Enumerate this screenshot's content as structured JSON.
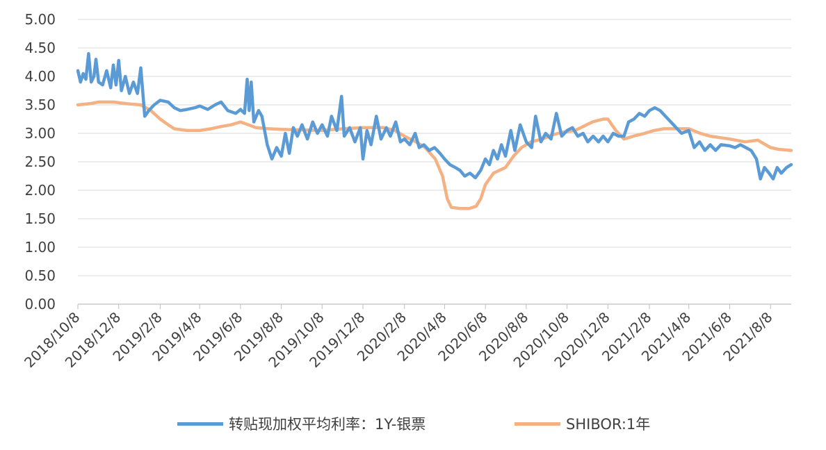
{
  "chart_data": {
    "type": "line",
    "y_axis": {
      "min": 0,
      "max": 5,
      "step": 0.5,
      "tick_labels": [
        "0.00",
        "0.50",
        "1.00",
        "1.50",
        "2.00",
        "2.50",
        "3.00",
        "3.50",
        "4.00",
        "4.50",
        "5.00"
      ]
    },
    "x_axis": {
      "start": "2018-10-08",
      "end": "2021-09-08",
      "ticks": [
        {
          "date": "2018-10-08",
          "label": "2018/10/8"
        },
        {
          "date": "2018-12-08",
          "label": "2018/12/8"
        },
        {
          "date": "2019-02-08",
          "label": "2019/2/8"
        },
        {
          "date": "2019-04-08",
          "label": "2019/4/8"
        },
        {
          "date": "2019-06-08",
          "label": "2019/6/8"
        },
        {
          "date": "2019-08-08",
          "label": "2019/8/8"
        },
        {
          "date": "2019-10-08",
          "label": "2019/10/8"
        },
        {
          "date": "2019-12-08",
          "label": "2019/12/8"
        },
        {
          "date": "2020-02-08",
          "label": "2020/2/8"
        },
        {
          "date": "2020-04-08",
          "label": "2020/4/8"
        },
        {
          "date": "2020-06-08",
          "label": "2020/6/8"
        },
        {
          "date": "2020-08-08",
          "label": "2020/8/8"
        },
        {
          "date": "2020-10-08",
          "label": "2020/10/8"
        },
        {
          "date": "2020-12-08",
          "label": "2020/12/8"
        },
        {
          "date": "2021-02-08",
          "label": "2021/2/8"
        },
        {
          "date": "2021-04-08",
          "label": "2021/4/8"
        },
        {
          "date": "2021-06-08",
          "label": "2021/6/8"
        },
        {
          "date": "2021-08-08",
          "label": "2021/8/8"
        }
      ]
    },
    "grid": true,
    "legend_position": "bottom",
    "series": [
      {
        "name": "转贴现加权平均利率：1Y-银票",
        "color": "#5B9BD5",
        "points": [
          [
            "2018-10-08",
            4.1
          ],
          [
            "2018-10-12",
            3.9
          ],
          [
            "2018-10-16",
            4.05
          ],
          [
            "2018-10-20",
            3.95
          ],
          [
            "2018-10-24",
            4.4
          ],
          [
            "2018-10-28",
            3.9
          ],
          [
            "2018-11-01",
            4.0
          ],
          [
            "2018-11-04",
            4.3
          ],
          [
            "2018-11-08",
            3.9
          ],
          [
            "2018-11-14",
            3.85
          ],
          [
            "2018-11-20",
            4.1
          ],
          [
            "2018-11-26",
            3.8
          ],
          [
            "2018-11-30",
            4.2
          ],
          [
            "2018-12-04",
            3.85
          ],
          [
            "2018-12-08",
            4.28
          ],
          [
            "2018-12-12",
            3.75
          ],
          [
            "2018-12-18",
            4.0
          ],
          [
            "2018-12-24",
            3.7
          ],
          [
            "2018-12-30",
            3.9
          ],
          [
            "2019-01-05",
            3.7
          ],
          [
            "2019-01-10",
            4.15
          ],
          [
            "2019-01-16",
            3.3
          ],
          [
            "2019-01-22",
            3.4
          ],
          [
            "2019-01-30",
            3.5
          ],
          [
            "2019-02-08",
            3.58
          ],
          [
            "2019-02-20",
            3.55
          ],
          [
            "2019-03-01",
            3.45
          ],
          [
            "2019-03-10",
            3.4
          ],
          [
            "2019-03-20",
            3.42
          ],
          [
            "2019-04-01",
            3.45
          ],
          [
            "2019-04-08",
            3.48
          ],
          [
            "2019-04-20",
            3.42
          ],
          [
            "2019-05-01",
            3.5
          ],
          [
            "2019-05-10",
            3.55
          ],
          [
            "2019-05-20",
            3.4
          ],
          [
            "2019-06-01",
            3.35
          ],
          [
            "2019-06-08",
            3.42
          ],
          [
            "2019-06-14",
            3.35
          ],
          [
            "2019-06-18",
            3.95
          ],
          [
            "2019-06-21",
            3.4
          ],
          [
            "2019-06-24",
            3.9
          ],
          [
            "2019-06-28",
            3.2
          ],
          [
            "2019-07-05",
            3.4
          ],
          [
            "2019-07-10",
            3.3
          ],
          [
            "2019-07-18",
            2.8
          ],
          [
            "2019-07-25",
            2.55
          ],
          [
            "2019-08-01",
            2.75
          ],
          [
            "2019-08-08",
            2.6
          ],
          [
            "2019-08-14",
            3.0
          ],
          [
            "2019-08-20",
            2.65
          ],
          [
            "2019-08-26",
            3.1
          ],
          [
            "2019-09-01",
            2.95
          ],
          [
            "2019-09-08",
            3.15
          ],
          [
            "2019-09-16",
            2.9
          ],
          [
            "2019-09-24",
            3.2
          ],
          [
            "2019-10-01",
            3.0
          ],
          [
            "2019-10-08",
            3.15
          ],
          [
            "2019-10-16",
            2.95
          ],
          [
            "2019-10-22",
            3.3
          ],
          [
            "2019-10-30",
            3.05
          ],
          [
            "2019-11-06",
            3.65
          ],
          [
            "2019-11-10",
            2.95
          ],
          [
            "2019-11-18",
            3.1
          ],
          [
            "2019-11-26",
            2.85
          ],
          [
            "2019-12-04",
            3.1
          ],
          [
            "2019-12-08",
            2.55
          ],
          [
            "2019-12-14",
            3.05
          ],
          [
            "2019-12-20",
            2.8
          ],
          [
            "2019-12-28",
            3.3
          ],
          [
            "2020-01-04",
            2.9
          ],
          [
            "2020-01-12",
            3.1
          ],
          [
            "2020-01-18",
            2.95
          ],
          [
            "2020-01-26",
            3.2
          ],
          [
            "2020-02-02",
            2.85
          ],
          [
            "2020-02-08",
            2.9
          ],
          [
            "2020-02-16",
            2.8
          ],
          [
            "2020-02-24",
            3.0
          ],
          [
            "2020-03-01",
            2.75
          ],
          [
            "2020-03-08",
            2.8
          ],
          [
            "2020-03-16",
            2.7
          ],
          [
            "2020-03-24",
            2.75
          ],
          [
            "2020-04-01",
            2.65
          ],
          [
            "2020-04-08",
            2.55
          ],
          [
            "2020-04-16",
            2.45
          ],
          [
            "2020-04-24",
            2.4
          ],
          [
            "2020-05-01",
            2.35
          ],
          [
            "2020-05-08",
            2.25
          ],
          [
            "2020-05-16",
            2.3
          ],
          [
            "2020-05-24",
            2.22
          ],
          [
            "2020-06-01",
            2.35
          ],
          [
            "2020-06-08",
            2.55
          ],
          [
            "2020-06-14",
            2.45
          ],
          [
            "2020-06-20",
            2.7
          ],
          [
            "2020-06-26",
            2.55
          ],
          [
            "2020-07-02",
            2.8
          ],
          [
            "2020-07-08",
            2.6
          ],
          [
            "2020-07-16",
            3.05
          ],
          [
            "2020-07-22",
            2.7
          ],
          [
            "2020-07-30",
            3.15
          ],
          [
            "2020-08-08",
            2.85
          ],
          [
            "2020-08-16",
            2.75
          ],
          [
            "2020-08-22",
            3.3
          ],
          [
            "2020-08-30",
            2.85
          ],
          [
            "2020-09-06",
            3.0
          ],
          [
            "2020-09-14",
            2.9
          ],
          [
            "2020-09-22",
            3.35
          ],
          [
            "2020-09-30",
            2.95
          ],
          [
            "2020-10-08",
            3.05
          ],
          [
            "2020-10-16",
            3.1
          ],
          [
            "2020-10-24",
            2.95
          ],
          [
            "2020-11-01",
            3.0
          ],
          [
            "2020-11-08",
            2.85
          ],
          [
            "2020-11-16",
            2.95
          ],
          [
            "2020-11-24",
            2.85
          ],
          [
            "2020-12-01",
            2.95
          ],
          [
            "2020-12-08",
            2.85
          ],
          [
            "2020-12-16",
            3.0
          ],
          [
            "2020-12-24",
            2.95
          ],
          [
            "2021-01-01",
            2.95
          ],
          [
            "2021-01-08",
            3.2
          ],
          [
            "2021-01-16",
            3.25
          ],
          [
            "2021-01-24",
            3.35
          ],
          [
            "2021-02-01",
            3.3
          ],
          [
            "2021-02-08",
            3.4
          ],
          [
            "2021-02-16",
            3.45
          ],
          [
            "2021-02-24",
            3.4
          ],
          [
            "2021-03-04",
            3.3
          ],
          [
            "2021-03-12",
            3.2
          ],
          [
            "2021-03-20",
            3.1
          ],
          [
            "2021-03-28",
            3.0
          ],
          [
            "2021-04-08",
            3.05
          ],
          [
            "2021-04-16",
            2.75
          ],
          [
            "2021-04-24",
            2.85
          ],
          [
            "2021-05-02",
            2.7
          ],
          [
            "2021-05-10",
            2.8
          ],
          [
            "2021-05-18",
            2.7
          ],
          [
            "2021-05-26",
            2.8
          ],
          [
            "2021-06-08",
            2.78
          ],
          [
            "2021-06-16",
            2.75
          ],
          [
            "2021-06-24",
            2.8
          ],
          [
            "2021-07-02",
            2.75
          ],
          [
            "2021-07-10",
            2.7
          ],
          [
            "2021-07-18",
            2.55
          ],
          [
            "2021-07-24",
            2.2
          ],
          [
            "2021-07-30",
            2.4
          ],
          [
            "2021-08-06",
            2.3
          ],
          [
            "2021-08-12",
            2.2
          ],
          [
            "2021-08-18",
            2.4
          ],
          [
            "2021-08-24",
            2.3
          ],
          [
            "2021-09-01",
            2.4
          ],
          [
            "2021-09-08",
            2.45
          ]
        ]
      },
      {
        "name": "SHIBOR:1年",
        "color": "#F4B183",
        "points": [
          [
            "2018-10-08",
            3.5
          ],
          [
            "2018-10-25",
            3.52
          ],
          [
            "2018-11-08",
            3.55
          ],
          [
            "2018-11-30",
            3.55
          ],
          [
            "2018-12-20",
            3.52
          ],
          [
            "2019-01-10",
            3.5
          ],
          [
            "2019-01-25",
            3.4
          ],
          [
            "2019-02-08",
            3.25
          ],
          [
            "2019-02-20",
            3.15
          ],
          [
            "2019-03-01",
            3.08
          ],
          [
            "2019-03-20",
            3.05
          ],
          [
            "2019-04-08",
            3.05
          ],
          [
            "2019-04-25",
            3.08
          ],
          [
            "2019-05-10",
            3.12
          ],
          [
            "2019-05-25",
            3.15
          ],
          [
            "2019-06-08",
            3.2
          ],
          [
            "2019-06-20",
            3.15
          ],
          [
            "2019-07-01",
            3.1
          ],
          [
            "2019-07-20",
            3.08
          ],
          [
            "2019-08-08",
            3.07
          ],
          [
            "2019-09-08",
            3.06
          ],
          [
            "2019-10-08",
            3.05
          ],
          [
            "2019-11-08",
            3.08
          ],
          [
            "2019-12-08",
            3.1
          ],
          [
            "2020-01-08",
            3.1
          ],
          [
            "2020-01-25",
            3.05
          ],
          [
            "2020-02-08",
            2.95
          ],
          [
            "2020-02-25",
            2.85
          ],
          [
            "2020-03-10",
            2.75
          ],
          [
            "2020-03-25",
            2.55
          ],
          [
            "2020-04-05",
            2.25
          ],
          [
            "2020-04-12",
            1.85
          ],
          [
            "2020-04-18",
            1.7
          ],
          [
            "2020-05-01",
            1.68
          ],
          [
            "2020-05-15",
            1.68
          ],
          [
            "2020-05-25",
            1.72
          ],
          [
            "2020-06-01",
            1.85
          ],
          [
            "2020-06-08",
            2.1
          ],
          [
            "2020-06-20",
            2.3
          ],
          [
            "2020-07-08",
            2.4
          ],
          [
            "2020-07-20",
            2.6
          ],
          [
            "2020-08-01",
            2.75
          ],
          [
            "2020-08-15",
            2.85
          ],
          [
            "2020-09-01",
            2.9
          ],
          [
            "2020-09-15",
            2.97
          ],
          [
            "2020-10-01",
            3.02
          ],
          [
            "2020-10-20",
            3.05
          ],
          [
            "2020-11-01",
            3.12
          ],
          [
            "2020-11-15",
            3.2
          ],
          [
            "2020-12-01",
            3.25
          ],
          [
            "2020-12-08",
            3.25
          ],
          [
            "2020-12-20",
            3.05
          ],
          [
            "2021-01-01",
            2.9
          ],
          [
            "2021-01-15",
            2.95
          ],
          [
            "2021-02-01",
            3.0
          ],
          [
            "2021-02-15",
            3.05
          ],
          [
            "2021-03-01",
            3.08
          ],
          [
            "2021-04-08",
            3.08
          ],
          [
            "2021-04-25",
            3.0
          ],
          [
            "2021-05-10",
            2.95
          ],
          [
            "2021-06-08",
            2.9
          ],
          [
            "2021-07-01",
            2.85
          ],
          [
            "2021-07-20",
            2.88
          ],
          [
            "2021-08-08",
            2.75
          ],
          [
            "2021-08-20",
            2.72
          ],
          [
            "2021-09-08",
            2.7
          ]
        ]
      }
    ]
  },
  "colors": {
    "grid": "#D9D9D9",
    "axis": "#BFBFBF",
    "text": "#404040"
  }
}
